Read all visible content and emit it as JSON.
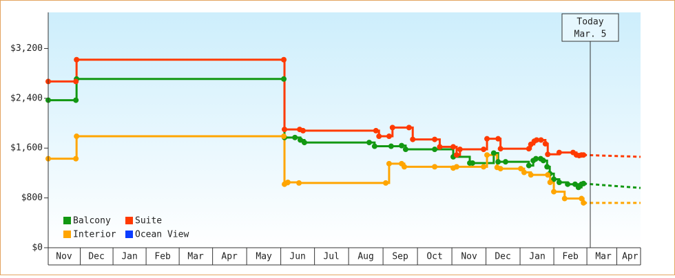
{
  "chart_data": {
    "type": "step-line",
    "xlim": [
      0,
      17.55
    ],
    "xticks": [
      {
        "value": 0.47,
        "label": "Nov"
      },
      {
        "value": 1.43,
        "label": "Dec"
      },
      {
        "value": 2.41,
        "label": "Jan"
      },
      {
        "value": 3.39,
        "label": "Feb"
      },
      {
        "value": 4.37,
        "label": "Mar"
      },
      {
        "value": 5.37,
        "label": "Apr"
      },
      {
        "value": 6.39,
        "label": "May"
      },
      {
        "value": 7.39,
        "label": "Jun"
      },
      {
        "value": 8.39,
        "label": "Jul"
      },
      {
        "value": 9.41,
        "label": "Aug"
      },
      {
        "value": 10.43,
        "label": "Sep"
      },
      {
        "value": 11.45,
        "label": "Oct"
      },
      {
        "value": 12.47,
        "label": "Nov"
      },
      {
        "value": 13.47,
        "label": "Dec"
      },
      {
        "value": 14.49,
        "label": "Jan"
      },
      {
        "value": 15.47,
        "label": "Feb"
      },
      {
        "value": 16.45,
        "label": "Mar"
      },
      {
        "value": 17.24,
        "label": "Apr"
      }
    ],
    "ylim": [
      0,
      3780
    ],
    "yticks": [
      {
        "value": 0,
        "label": "$0"
      },
      {
        "value": 800,
        "label": "$800"
      },
      {
        "value": 1600,
        "label": "$1,600"
      },
      {
        "value": 2400,
        "label": "$2,400"
      },
      {
        "value": 3200,
        "label": "$3,200"
      }
    ],
    "legend": "lower left",
    "annotation": {
      "x": 16.06,
      "lines": [
        "Today",
        "Mar. 5"
      ]
    },
    "series": [
      {
        "name": "Balcony",
        "color": "#129812",
        "x": [
          0,
          0.82,
          0.84,
          6.98,
          7.0,
          7.31,
          7.47,
          7.59,
          9.51,
          9.67,
          10.16,
          10.47,
          10.59,
          11.45,
          12.0,
          12.49,
          12.57,
          13.2,
          13.33,
          13.55,
          14.24,
          14.37,
          14.45,
          14.59,
          14.67,
          14.78,
          14.86,
          14.98,
          15.14,
          15.39,
          15.61,
          15.71,
          15.8,
          15.86
        ],
        "values": [
          2370,
          2370,
          2710,
          2710,
          1770,
          1770,
          1730,
          1690,
          1690,
          1630,
          1630,
          1640,
          1580,
          1580,
          1460,
          1360,
          1360,
          1520,
          1380,
          1380,
          1320,
          1400,
          1430,
          1430,
          1400,
          1300,
          1190,
          1100,
          1050,
          1020,
          1020,
          970,
          1020,
          1030
        ],
        "forecast": {
          "x": [
            15.86,
            17.55
          ],
          "values": [
            1030,
            960
          ]
        }
      },
      {
        "name": "Suite",
        "color": "#ff3a00",
        "x": [
          0,
          0.82,
          0.84,
          6.98,
          7.0,
          7.45,
          7.55,
          9.71,
          9.8,
          10.1,
          10.2,
          10.69,
          10.8,
          11.45,
          11.6,
          12.0,
          12.1,
          12.2,
          12.9,
          13.0,
          13.33,
          13.4,
          14.24,
          14.3,
          14.4,
          14.47,
          14.6,
          14.73,
          14.8,
          15.14,
          15.55,
          15.65,
          15.73,
          15.8,
          15.86
        ],
        "values": [
          2670,
          2670,
          3020,
          3020,
          1900,
          1900,
          1880,
          1880,
          1790,
          1790,
          1930,
          1930,
          1740,
          1740,
          1620,
          1620,
          1490,
          1580,
          1580,
          1750,
          1750,
          1590,
          1590,
          1660,
          1710,
          1730,
          1730,
          1670,
          1500,
          1530,
          1530,
          1490,
          1480,
          1490,
          1490
        ],
        "forecast": {
          "x": [
            15.86,
            17.55
          ],
          "values": [
            1490,
            1460
          ]
        }
      },
      {
        "name": "Interior",
        "color": "#ffa500",
        "x": [
          0,
          0.82,
          0.84,
          6.98,
          7.0,
          7.1,
          7.43,
          10.0,
          10.1,
          10.47,
          10.55,
          11.45,
          12.0,
          12.1,
          12.9,
          13.0,
          13.3,
          13.4,
          14.0,
          14.1,
          14.3,
          14.8,
          14.87,
          14.98,
          15.3,
          15.8,
          15.86
        ],
        "values": [
          1430,
          1430,
          1790,
          1790,
          1020,
          1050,
          1040,
          1040,
          1350,
          1350,
          1300,
          1300,
          1280,
          1300,
          1300,
          1490,
          1290,
          1270,
          1270,
          1210,
          1170,
          1170,
          1050,
          900,
          790,
          790,
          720
        ],
        "forecast": {
          "x": [
            15.86,
            17.55
          ],
          "values": [
            720,
            720
          ]
        }
      },
      {
        "name": "Ocean View",
        "color": "#0a3cff",
        "x": [],
        "values": []
      }
    ]
  }
}
